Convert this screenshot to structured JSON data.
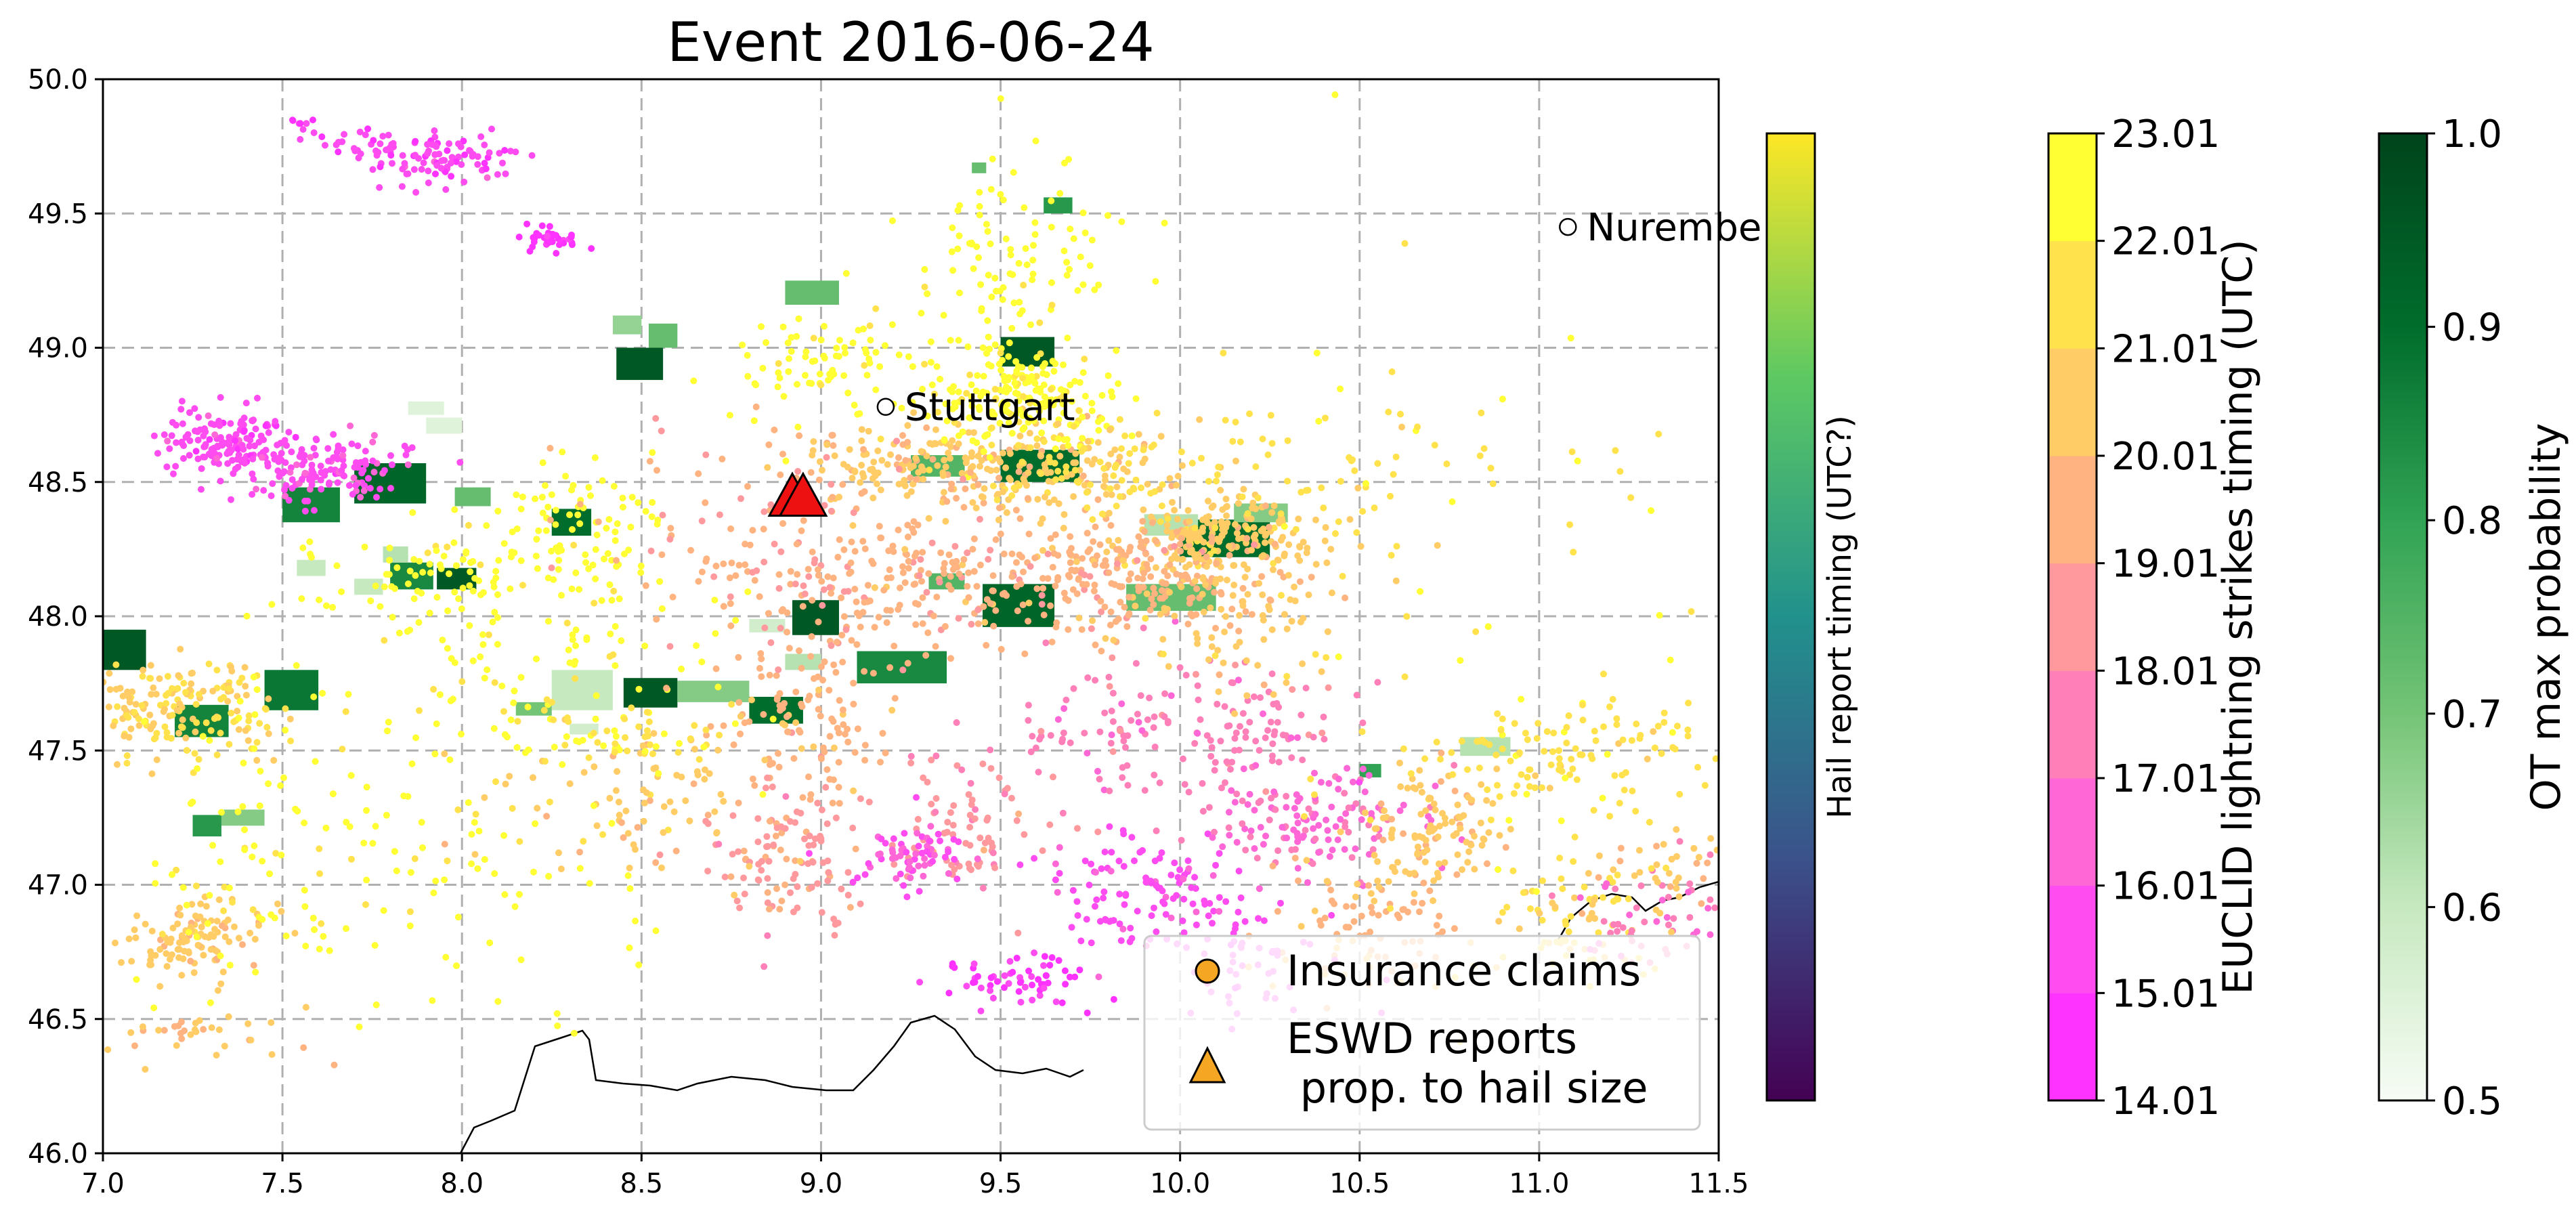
{
  "chart_data": {
    "type": "scatter",
    "title": "Event 2016-06-24",
    "xlabel": "",
    "ylabel": "",
    "xlim": [
      7.0,
      11.5
    ],
    "ylim": [
      46.0,
      50.0
    ],
    "x_ticks": [
      "7.0",
      "7.5",
      "8.0",
      "8.5",
      "9.0",
      "9.5",
      "10.0",
      "10.5",
      "11.0",
      "11.5"
    ],
    "y_ticks": [
      "46.0",
      "46.5",
      "47.0",
      "47.5",
      "48.0",
      "48.5",
      "49.0",
      "49.5",
      "50.0"
    ],
    "grid": true,
    "cities": [
      {
        "name": "Stuttgart",
        "lon": 9.18,
        "lat": 48.78
      },
      {
        "name": "Nurembe",
        "lon": 11.08,
        "lat": 49.45
      }
    ],
    "eswd_reports": [
      {
        "lon": 8.92,
        "lat": 48.44,
        "color": "#ee1111"
      },
      {
        "lon": 8.95,
        "lat": 48.44,
        "color": "#ee1111"
      }
    ],
    "lightning_clusters": [
      {
        "lon": 7.35,
        "lat": 48.65,
        "slat": 0.06,
        "slon": 0.1,
        "n": 150,
        "time": 15.5
      },
      {
        "lon": 7.6,
        "lat": 48.55,
        "slat": 0.06,
        "slon": 0.12,
        "n": 140,
        "time": 15.8
      },
      {
        "lon": 7.95,
        "lat": 49.7,
        "slat": 0.05,
        "slon": 0.1,
        "n": 90,
        "time": 15.3
      },
      {
        "lon": 7.75,
        "lat": 49.75,
        "slat": 0.04,
        "slon": 0.06,
        "n": 30,
        "time": 15.2
      },
      {
        "lon": 8.25,
        "lat": 49.4,
        "slat": 0.03,
        "slon": 0.04,
        "n": 40,
        "time": 14.5
      },
      {
        "lon": 7.55,
        "lat": 49.82,
        "slat": 0.02,
        "slon": 0.02,
        "n": 8,
        "time": 15.0
      },
      {
        "lon": 9.4,
        "lat": 48.55,
        "slat": 0.08,
        "slon": 0.25,
        "n": 260,
        "time": 20.3
      },
      {
        "lon": 9.55,
        "lat": 48.8,
        "slat": 0.1,
        "slon": 0.12,
        "n": 200,
        "time": 22.4
      },
      {
        "lon": 9.55,
        "lat": 49.35,
        "slat": 0.2,
        "slon": 0.15,
        "n": 100,
        "time": 22.6
      },
      {
        "lon": 9.05,
        "lat": 48.95,
        "slat": 0.12,
        "slon": 0.15,
        "n": 90,
        "time": 22.5
      },
      {
        "lon": 10.1,
        "lat": 48.3,
        "slat": 0.07,
        "slon": 0.15,
        "n": 180,
        "time": 20.5
      },
      {
        "lon": 9.85,
        "lat": 48.15,
        "slat": 0.1,
        "slon": 0.2,
        "n": 220,
        "time": 19.5
      },
      {
        "lon": 9.3,
        "lat": 48.15,
        "slat": 0.15,
        "slon": 0.25,
        "n": 200,
        "time": 19.3
      },
      {
        "lon": 8.95,
        "lat": 47.6,
        "slat": 0.15,
        "slon": 0.12,
        "n": 110,
        "time": 19.6
      },
      {
        "lon": 8.9,
        "lat": 47.1,
        "slat": 0.12,
        "slon": 0.12,
        "n": 110,
        "time": 18.7
      },
      {
        "lon": 9.4,
        "lat": 47.2,
        "slat": 0.12,
        "slon": 0.12,
        "n": 80,
        "time": 18.3
      },
      {
        "lon": 9.25,
        "lat": 47.1,
        "slat": 0.07,
        "slon": 0.07,
        "n": 70,
        "time": 16.0
      },
      {
        "lon": 10.0,
        "lat": 47.55,
        "slat": 0.15,
        "slon": 0.25,
        "n": 180,
        "time": 17.5
      },
      {
        "lon": 9.9,
        "lat": 46.95,
        "slat": 0.12,
        "slon": 0.15,
        "n": 120,
        "time": 15.6
      },
      {
        "lon": 9.55,
        "lat": 46.65,
        "slat": 0.06,
        "slon": 0.1,
        "n": 60,
        "time": 15.0
      },
      {
        "lon": 10.4,
        "lat": 47.25,
        "slat": 0.1,
        "slon": 0.15,
        "n": 130,
        "time": 16.8
      },
      {
        "lon": 10.5,
        "lat": 46.9,
        "slat": 0.15,
        "slon": 0.15,
        "n": 90,
        "time": 19.8
      },
      {
        "lon": 10.7,
        "lat": 47.2,
        "slat": 0.12,
        "slon": 0.1,
        "n": 110,
        "time": 20.4
      },
      {
        "lon": 11.1,
        "lat": 47.5,
        "slat": 0.1,
        "slon": 0.2,
        "n": 110,
        "time": 21.5
      },
      {
        "lon": 11.1,
        "lat": 46.85,
        "slat": 0.12,
        "slon": 0.12,
        "n": 70,
        "time": 21.2
      },
      {
        "lon": 11.3,
        "lat": 46.9,
        "slat": 0.12,
        "slon": 0.1,
        "n": 50,
        "time": 17.2
      },
      {
        "lon": 7.2,
        "lat": 47.65,
        "slat": 0.1,
        "slon": 0.15,
        "n": 180,
        "time": 21.0
      },
      {
        "lon": 7.25,
        "lat": 46.8,
        "slat": 0.08,
        "slon": 0.1,
        "n": 110,
        "time": 20.4
      },
      {
        "lon": 7.45,
        "lat": 47.1,
        "slat": 0.3,
        "slon": 0.2,
        "n": 90,
        "time": 22.4
      },
      {
        "lon": 7.9,
        "lat": 48.15,
        "slat": 0.1,
        "slon": 0.2,
        "n": 70,
        "time": 22.6
      },
      {
        "lon": 8.35,
        "lat": 48.35,
        "slat": 0.12,
        "slon": 0.12,
        "n": 70,
        "time": 22.7
      },
      {
        "lon": 8.2,
        "lat": 47.9,
        "slat": 0.3,
        "slon": 0.25,
        "n": 120,
        "time": 22.3
      },
      {
        "lon": 8.5,
        "lat": 47.3,
        "slat": 0.15,
        "slon": 0.2,
        "n": 80,
        "time": 20.4
      },
      {
        "lon": 8.0,
        "lat": 47.1,
        "slat": 0.3,
        "slon": 0.3,
        "n": 70,
        "time": 22.5
      },
      {
        "lon": 7.3,
        "lat": 46.45,
        "slat": 0.05,
        "slon": 0.15,
        "n": 35,
        "time": 20.2
      },
      {
        "lon": 10.2,
        "lat": 46.7,
        "slat": 0.1,
        "slon": 0.15,
        "n": 50,
        "time": 15.4
      },
      {
        "lon": 10.9,
        "lat": 47.9,
        "slat": 0.6,
        "slon": 0.4,
        "n": 60,
        "time": 21.8
      },
      {
        "lon": 10.4,
        "lat": 48.55,
        "slat": 0.2,
        "slon": 0.3,
        "n": 70,
        "time": 21.6
      },
      {
        "lon": 8.85,
        "lat": 48.2,
        "slat": 0.3,
        "slon": 0.25,
        "n": 120,
        "time": 19.2
      },
      {
        "lon": 8.45,
        "lat": 47.55,
        "slat": 0.1,
        "slon": 0.2,
        "n": 60,
        "time": 21.9
      },
      {
        "lon": 11.35,
        "lat": 47.05,
        "slat": 0.1,
        "slon": 0.1,
        "n": 40,
        "time": 20.3
      },
      {
        "lon": 9.75,
        "lat": 48.55,
        "slat": 0.1,
        "slon": 0.15,
        "n": 80,
        "time": 21.2
      },
      {
        "lon": 10.15,
        "lat": 48.05,
        "slat": 0.15,
        "slon": 0.15,
        "n": 110,
        "time": 20.4
      }
    ],
    "ot_patches": [
      {
        "lon0": 8.43,
        "lon1": 8.56,
        "lat0": 48.88,
        "lat1": 49.0,
        "p": 0.95
      },
      {
        "lon0": 8.52,
        "lon1": 8.6,
        "lat0": 49.0,
        "lat1": 49.09,
        "p": 0.72
      },
      {
        "lon0": 8.42,
        "lon1": 8.5,
        "lat0": 49.05,
        "lat1": 49.12,
        "p": 0.66
      },
      {
        "lon0": 8.9,
        "lon1": 9.05,
        "lat0": 49.16,
        "lat1": 49.25,
        "p": 0.72
      },
      {
        "lon0": 9.62,
        "lon1": 9.7,
        "lat0": 49.5,
        "lat1": 49.56,
        "p": 0.82
      },
      {
        "lon0": 9.42,
        "lon1": 9.46,
        "lat0": 49.65,
        "lat1": 49.69,
        "p": 0.72
      },
      {
        "lon0": 7.5,
        "lon1": 7.66,
        "lat0": 48.35,
        "lat1": 48.48,
        "p": 0.86
      },
      {
        "lon0": 7.7,
        "lon1": 7.9,
        "lat0": 48.42,
        "lat1": 48.57,
        "p": 0.92
      },
      {
        "lon0": 7.98,
        "lon1": 8.08,
        "lat0": 48.41,
        "lat1": 48.48,
        "p": 0.72
      },
      {
        "lon0": 7.8,
        "lon1": 7.92,
        "lat0": 48.1,
        "lat1": 48.2,
        "p": 0.85
      },
      {
        "lon0": 7.93,
        "lon1": 8.04,
        "lat0": 48.1,
        "lat1": 48.18,
        "p": 0.95
      },
      {
        "lon0": 7.7,
        "lon1": 7.78,
        "lat0": 48.08,
        "lat1": 48.14,
        "p": 0.6
      },
      {
        "lon0": 7.54,
        "lon1": 7.62,
        "lat0": 48.15,
        "lat1": 48.21,
        "p": 0.6
      },
      {
        "lon0": 7.78,
        "lon1": 7.85,
        "lat0": 48.2,
        "lat1": 48.26,
        "p": 0.62
      },
      {
        "lon0": 7.85,
        "lon1": 7.95,
        "lat0": 48.75,
        "lat1": 48.8,
        "p": 0.55
      },
      {
        "lon0": 8.25,
        "lon1": 8.36,
        "lat0": 48.3,
        "lat1": 48.4,
        "p": 0.9
      },
      {
        "lon0": 7.0,
        "lon1": 7.12,
        "lat0": 47.8,
        "lat1": 47.95,
        "p": 0.95
      },
      {
        "lon0": 7.2,
        "lon1": 7.35,
        "lat0": 47.55,
        "lat1": 47.67,
        "p": 0.86
      },
      {
        "lon0": 7.45,
        "lon1": 7.6,
        "lat0": 47.65,
        "lat1": 47.8,
        "p": 0.88
      },
      {
        "lon0": 7.25,
        "lon1": 7.33,
        "lat0": 47.18,
        "lat1": 47.26,
        "p": 0.82
      },
      {
        "lon0": 7.33,
        "lon1": 7.45,
        "lat0": 47.22,
        "lat1": 47.28,
        "p": 0.68
      },
      {
        "lon0": 8.45,
        "lon1": 8.6,
        "lat0": 47.66,
        "lat1": 47.77,
        "p": 0.95
      },
      {
        "lon0": 8.6,
        "lon1": 8.8,
        "lat0": 47.68,
        "lat1": 47.76,
        "p": 0.68
      },
      {
        "lon0": 8.25,
        "lon1": 8.42,
        "lat0": 47.65,
        "lat1": 47.8,
        "p": 0.6
      },
      {
        "lon0": 8.8,
        "lon1": 8.95,
        "lat0": 47.6,
        "lat1": 47.7,
        "p": 0.9
      },
      {
        "lon0": 8.15,
        "lon1": 8.25,
        "lat0": 47.63,
        "lat1": 47.68,
        "p": 0.7
      },
      {
        "lon0": 8.3,
        "lon1": 8.38,
        "lat0": 47.56,
        "lat1": 47.6,
        "p": 0.58
      },
      {
        "lon0": 8.92,
        "lon1": 9.05,
        "lat0": 47.93,
        "lat1": 48.06,
        "p": 0.95
      },
      {
        "lon0": 8.9,
        "lon1": 9.0,
        "lat0": 47.8,
        "lat1": 47.86,
        "p": 0.62
      },
      {
        "lon0": 9.1,
        "lon1": 9.35,
        "lat0": 47.75,
        "lat1": 47.87,
        "p": 0.85
      },
      {
        "lon0": 9.45,
        "lon1": 9.65,
        "lat0": 47.96,
        "lat1": 48.12,
        "p": 0.92
      },
      {
        "lon0": 9.3,
        "lon1": 9.4,
        "lat0": 48.1,
        "lat1": 48.16,
        "p": 0.75
      },
      {
        "lon0": 9.5,
        "lon1": 9.72,
        "lat0": 48.5,
        "lat1": 48.62,
        "p": 0.9
      },
      {
        "lon0": 9.25,
        "lon1": 9.4,
        "lat0": 48.52,
        "lat1": 48.6,
        "p": 0.75
      },
      {
        "lon0": 9.5,
        "lon1": 9.65,
        "lat0": 48.93,
        "lat1": 49.04,
        "p": 0.95
      },
      {
        "lon0": 9.85,
        "lon1": 10.1,
        "lat0": 48.02,
        "lat1": 48.12,
        "p": 0.72
      },
      {
        "lon0": 10.0,
        "lon1": 10.25,
        "lat0": 48.22,
        "lat1": 48.36,
        "p": 0.9
      },
      {
        "lon0": 10.15,
        "lon1": 10.3,
        "lat0": 48.35,
        "lat1": 48.42,
        "p": 0.68
      },
      {
        "lon0": 9.9,
        "lon1": 10.05,
        "lat0": 48.3,
        "lat1": 48.38,
        "p": 0.62
      },
      {
        "lon0": 10.5,
        "lon1": 10.56,
        "lat0": 47.4,
        "lat1": 47.45,
        "p": 0.8
      },
      {
        "lon0": 10.78,
        "lon1": 10.92,
        "lat0": 47.48,
        "lat1": 47.55,
        "p": 0.62
      },
      {
        "lon0": 7.9,
        "lon1": 8.0,
        "lat0": 48.68,
        "lat1": 48.74,
        "p": 0.55
      },
      {
        "lon0": 8.8,
        "lon1": 8.9,
        "lat0": 47.94,
        "lat1": 47.99,
        "p": 0.58
      }
    ]
  },
  "legend": {
    "items": [
      {
        "label": "Insurance claims",
        "marker": "circle",
        "color": "#f5a623"
      },
      {
        "label": "ESWD reports\n prop. to hail size",
        "marker": "triangle",
        "color": "#f5a623"
      }
    ]
  },
  "colorbars": [
    {
      "id": "hail",
      "label": "Hail report timing (UTC?)",
      "ticks": [],
      "colors": [
        "#440154",
        "#3b528b",
        "#21918c",
        "#5ec962",
        "#fde725"
      ]
    },
    {
      "id": "euclid",
      "label": "EUCLID lightning strikes timing (UTC)",
      "ticks": [
        "14.01",
        "15.01",
        "16.01",
        "17.01",
        "18.01",
        "19.01",
        "20.01",
        "21.01",
        "22.01",
        "23.01"
      ],
      "range": [
        14.01,
        23.01
      ],
      "colors": [
        "#ff33ff",
        "#ff4cf0",
        "#ff66d6",
        "#ff80b8",
        "#ff999e",
        "#ffb380",
        "#ffcc66",
        "#ffe24c",
        "#ffff33"
      ]
    },
    {
      "id": "ot",
      "label": "OT max probability",
      "ticks": [
        "0.5",
        "0.6",
        "0.7",
        "0.8",
        "0.9",
        "1.0"
      ],
      "range": [
        0.5,
        1.0
      ],
      "colors": [
        "#f7fcf5",
        "#c7e9c0",
        "#74c476",
        "#31a354",
        "#006d2c",
        "#00441b"
      ]
    }
  ]
}
